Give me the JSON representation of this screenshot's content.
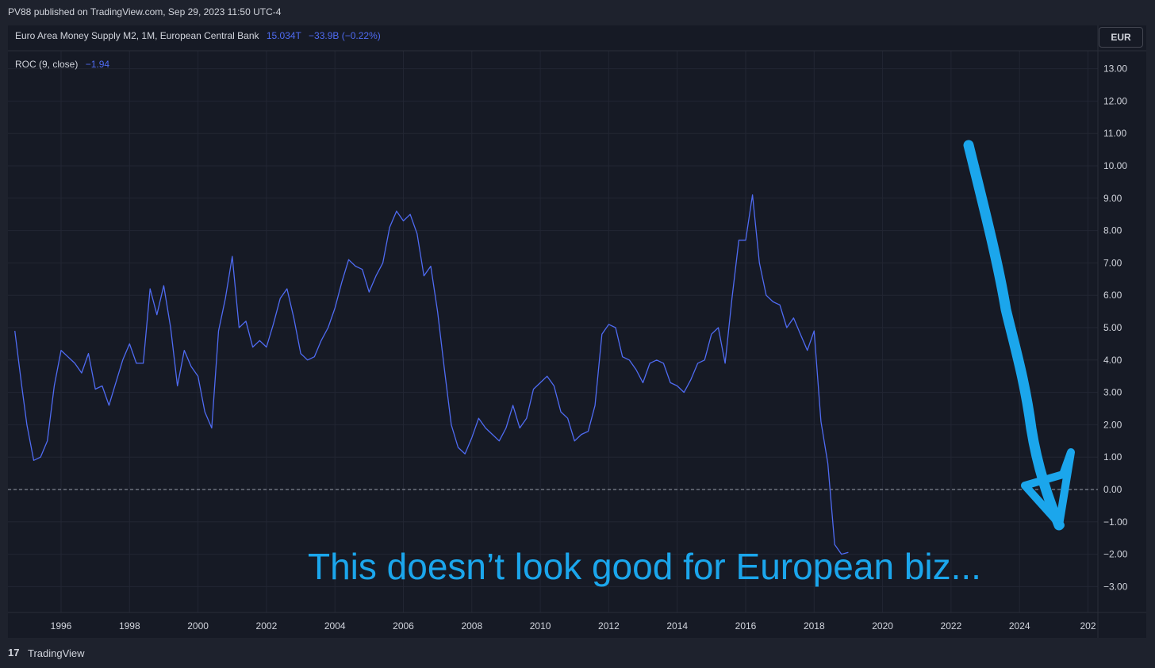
{
  "header": {
    "published": "PV88 published on TradingView.com, Sep 29, 2023 11:50 UTC-4"
  },
  "legend": {
    "series_title": "Euro Area Money Supply M2, 1M, European Central Bank",
    "series_value": "15.034T",
    "series_change": "−33.9B (−0.22%)",
    "indicator_title": "ROC (9, close)",
    "indicator_value": "−1.94"
  },
  "currency_button": "EUR",
  "annotation": "This doesn’t look good for European biz...",
  "footer": {
    "logo_glyph": "17",
    "brand": "TradingView"
  },
  "colors": {
    "background": "#161a25",
    "line": "#4f6bf2",
    "annotation": "#1ba6ec",
    "axis_text": "#d1d4dc",
    "grid": "#222633"
  },
  "icons": {
    "logo": "tradingview-logo-icon"
  },
  "chart_data": {
    "type": "line",
    "y_ticks": [
      "13.00",
      "12.00",
      "11.00",
      "10.00",
      "9.00",
      "8.00",
      "7.00",
      "6.00",
      "5.00",
      "4.00",
      "3.00",
      "2.00",
      "1.00",
      "0.00",
      "−1.00",
      "−2.00",
      "−3.00"
    ],
    "x_ticks": [
      "1996",
      "1998",
      "2000",
      "2002",
      "2004",
      "2006",
      "2008",
      "2010",
      "2012",
      "2014",
      "2016",
      "2018",
      "2020",
      "2022",
      "2024",
      "202"
    ],
    "ylim": [
      -3.5,
      13.5
    ],
    "xlim": [
      1994.6,
      2026.6
    ],
    "reference_line": 0,
    "series": [
      {
        "x": [
          1994.65,
          1994.85,
          1995.0,
          1995.2,
          1995.4,
          1995.6,
          1995.8,
          1996.0,
          1996.2,
          1996.4,
          1996.6,
          1996.8,
          1997.0,
          1997.2,
          1997.4,
          1997.6,
          1997.8,
          1998.0,
          1998.2,
          1998.4,
          1998.6,
          1998.8,
          1999.0,
          1999.2,
          1999.4,
          1999.6,
          1999.8,
          2000.0,
          2000.2,
          2000.4,
          2000.6,
          2000.8,
          2001.0,
          2001.2,
          2001.4,
          2001.6,
          2001.8,
          2002.0,
          2002.2,
          2002.4,
          2002.6,
          2002.8,
          2003.0,
          2003.2,
          2003.4,
          2003.6,
          2003.8,
          2004.0,
          2004.2,
          2004.4,
          2004.6,
          2004.8,
          2005.0,
          2005.2,
          2005.4,
          2005.6,
          2005.8,
          2006.0,
          2006.2,
          2006.4,
          2006.6,
          2006.8,
          2007.0,
          2007.2,
          2007.4,
          2007.6,
          2007.8,
          2008.0,
          2008.2,
          2008.4,
          2008.6,
          2008.8,
          2009.0,
          2009.2,
          2009.4,
          2009.6,
          2009.8,
          2010.0,
          2010.2,
          2010.4,
          2010.6,
          2010.8,
          2011.0,
          2011.2,
          2011.4,
          2011.6,
          2011.8,
          2012.0,
          2012.2,
          2012.4,
          2012.6,
          2012.8,
          2013.0,
          2013.2,
          2013.4,
          2013.6,
          2013.8,
          2014.0,
          2014.2,
          2014.4,
          2014.6,
          2014.8,
          2015.0,
          2015.2,
          2015.4,
          2015.6,
          2015.8,
          2016.0,
          2016.2,
          2016.4,
          2016.6,
          2016.8,
          2017.0,
          2017.2,
          2017.4,
          2017.6,
          2017.8,
          2018.0,
          2018.2,
          2018.4,
          2018.6,
          2018.8,
          2019.0,
          2019.2,
          2019.4,
          2019.6,
          2019.8,
          2020.0,
          2020.2,
          2020.4,
          2020.6,
          2020.8,
          2021.0,
          2021.2,
          2021.4,
          2021.6,
          2021.8,
          2022.0,
          2022.2,
          2022.4,
          2022.6,
          2022.8,
          2023.0,
          2023.2,
          2023.4,
          2023.55
        ],
        "values": [
          4.9,
          3.2,
          2.0,
          0.9,
          1.0,
          1.5,
          3.2,
          4.3,
          4.1,
          3.9,
          3.6,
          4.2,
          3.1,
          3.2,
          2.6,
          3.3,
          4.0,
          4.5,
          3.9,
          3.9,
          6.2,
          5.4,
          6.3,
          5.0,
          3.2,
          4.3,
          3.8,
          3.5,
          2.4,
          1.9,
          4.9,
          5.9,
          7.2,
          5.0,
          5.2,
          4.4,
          4.6,
          4.4,
          5.1,
          5.9,
          6.2,
          5.3,
          4.2,
          4.0,
          4.1,
          4.6,
          5.0,
          5.6,
          6.4,
          7.1,
          6.9,
          6.8,
          6.1,
          6.6,
          7.0,
          8.1,
          8.6,
          8.3,
          8.5,
          7.9,
          6.6,
          6.9,
          5.5,
          3.7,
          2.0,
          1.3,
          1.1,
          1.6,
          2.2,
          1.9,
          1.7,
          1.5,
          1.9,
          2.6,
          1.9,
          2.2,
          3.1,
          3.3,
          3.5,
          3.2,
          2.4,
          2.2,
          1.5,
          1.7,
          1.8,
          2.6,
          4.8,
          5.1,
          5.0,
          4.1,
          4.0,
          3.7,
          3.3,
          3.9,
          4.0,
          3.9,
          3.3,
          3.2,
          3.0,
          3.4,
          3.9,
          4.0,
          4.8,
          5.0,
          3.9,
          5.9,
          7.7,
          7.7,
          9.1,
          7.0,
          6.0,
          5.8,
          5.7,
          5.0,
          5.3,
          4.8,
          4.3,
          4.9,
          2.1,
          0.8,
          -1.7,
          -2.0,
          -1.94,
          -1.94,
          -1.94,
          -1.94,
          -1.94,
          -1.94,
          -1.94,
          -1.94,
          -1.94,
          -1.94,
          -1.94,
          -1.94,
          -1.94,
          -1.94,
          -1.94,
          -1.94,
          -1.94,
          -1.94,
          -1.94,
          -1.94,
          -1.94,
          -1.94,
          -1.94,
          -1.94
        ]
      }
    ]
  }
}
